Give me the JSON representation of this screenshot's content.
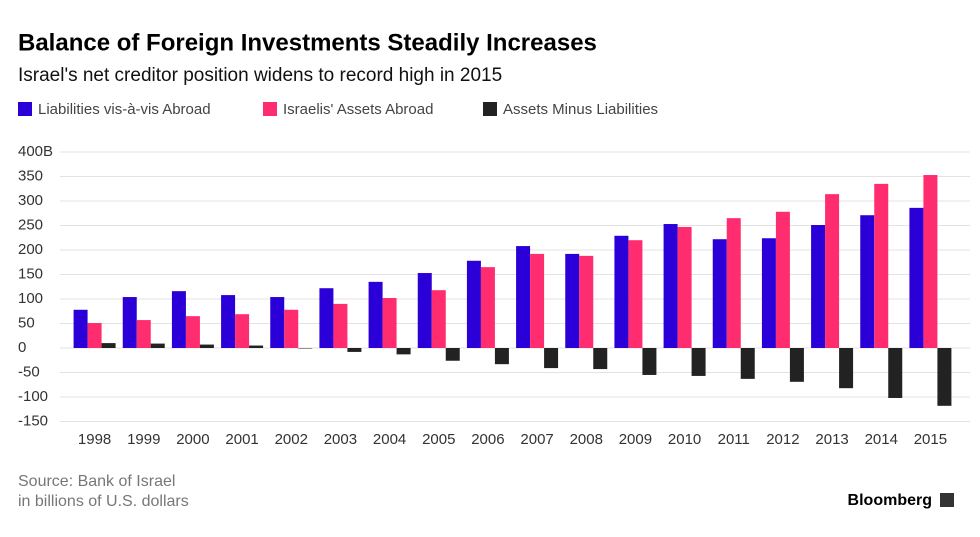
{
  "chart_data": {
    "type": "bar",
    "title": "Balance of Foreign Investments Steadily Increases",
    "subtitle": "Israel's net creditor position widens to record high in 2015",
    "categories": [
      "1998",
      "1999",
      "2000",
      "2001",
      "2002",
      "2003",
      "2004",
      "2005",
      "2006",
      "2007",
      "2008",
      "2009",
      "2010",
      "2011",
      "2012",
      "2013",
      "2014",
      "2015"
    ],
    "series": [
      {
        "name": "Liabilities vis-à-vis Abroad",
        "color": "#2b00d8",
        "values": [
          78,
          104,
          116,
          108,
          104,
          122,
          135,
          153,
          178,
          208,
          192,
          229,
          253,
          222,
          224,
          251,
          271,
          286
        ]
      },
      {
        "name": "Israelis' Assets Abroad",
        "color": "#ff2d6f",
        "values": [
          51,
          57,
          65,
          69,
          78,
          90,
          102,
          118,
          165,
          192,
          188,
          220,
          247,
          265,
          278,
          314,
          335,
          353
        ]
      },
      {
        "name": "Assets Minus Liabilities",
        "color": "#222222",
        "values": [
          10,
          9,
          7,
          5,
          -1,
          -8,
          -13,
          -26,
          -33,
          -41,
          -43,
          -55,
          -57,
          -63,
          -69,
          -82,
          -102,
          -118
        ]
      }
    ],
    "ylim": [
      -150,
      400
    ],
    "yticks": [
      -150,
      -100,
      -50,
      0,
      50,
      100,
      150,
      200,
      250,
      300,
      350,
      {
        "value": 400,
        "label": "400B"
      }
    ],
    "grid": true,
    "source": "Source: Bank of Israel",
    "note": "in billions of U.S. dollars",
    "brand": "Bloomberg"
  }
}
